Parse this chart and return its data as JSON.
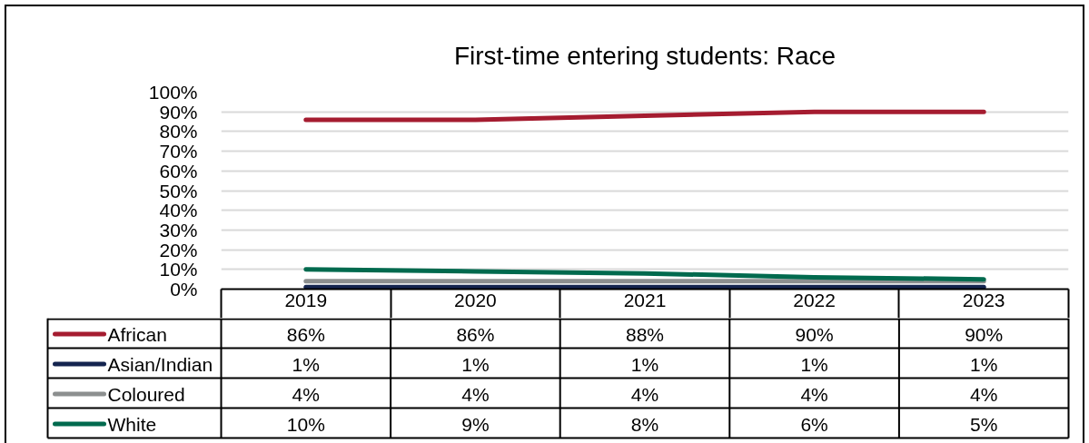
{
  "chart_data": {
    "type": "line",
    "title": "First-time entering students: Race",
    "categories": [
      "2019",
      "2020",
      "2021",
      "2022",
      "2023"
    ],
    "series": [
      {
        "name": "African",
        "color": "#a51c30",
        "values": [
          86,
          86,
          88,
          90,
          90
        ],
        "value_labels": [
          "86%",
          "86%",
          "88%",
          "90%",
          "90%"
        ]
      },
      {
        "name": "Asian/Indian",
        "color": "#14244f",
        "values": [
          1,
          1,
          1,
          1,
          1
        ],
        "value_labels": [
          "1%",
          "1%",
          "1%",
          "1%",
          "1%"
        ]
      },
      {
        "name": "Coloured",
        "color": "#8c8f8f",
        "values": [
          4,
          4,
          4,
          4,
          4
        ],
        "value_labels": [
          "4%",
          "4%",
          "4%",
          "4%",
          "4%"
        ]
      },
      {
        "name": "White",
        "color": "#006a4e",
        "values": [
          10,
          9,
          8,
          6,
          5
        ],
        "value_labels": [
          "10%",
          "9%",
          "8%",
          "6%",
          "5%"
        ]
      }
    ],
    "ylim": [
      0,
      100
    ],
    "yticks": [
      {
        "value": 0,
        "label": "0%"
      },
      {
        "value": 10,
        "label": "10%"
      },
      {
        "value": 20,
        "label": "20%"
      },
      {
        "value": 30,
        "label": "30%"
      },
      {
        "value": 40,
        "label": "40%"
      },
      {
        "value": 50,
        "label": "50%"
      },
      {
        "value": 60,
        "label": "60%"
      },
      {
        "value": 70,
        "label": "70%"
      },
      {
        "value": 80,
        "label": "80%"
      },
      {
        "value": 90,
        "label": "90%"
      },
      {
        "value": 100,
        "label": "100%"
      }
    ],
    "grid": "y",
    "legend": "bottom",
    "line_style": "solid"
  }
}
